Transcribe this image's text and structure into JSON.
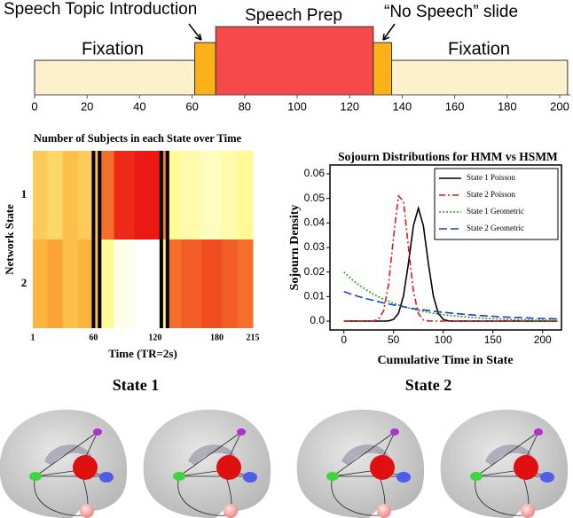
{
  "chart_data": [
    {
      "type": "timeline",
      "xlim": [
        0,
        204
      ],
      "xticks": [
        0,
        20,
        40,
        60,
        80,
        100,
        120,
        140,
        160,
        180,
        200
      ],
      "segments": [
        {
          "label": "Fixation",
          "start": 0,
          "end": 61,
          "color": "#fdf0cc"
        },
        {
          "label": "Speech Topic Introduction",
          "start": 61,
          "end": 69,
          "color": "#fbb117"
        },
        {
          "label": "Speech Prep",
          "start": 69,
          "end": 129,
          "color": "#f44a4a"
        },
        {
          "label": "“No Speech” slide",
          "start": 129,
          "end": 136,
          "color": "#fbb117"
        },
        {
          "label": "Fixation",
          "start": 136,
          "end": 203,
          "color": "#fdf0cc"
        }
      ]
    },
    {
      "type": "heatmap",
      "title": "Number of Subjects in each State over Time",
      "x_label": "Time (TR=2s)",
      "y_label": "Network State",
      "rows": [
        "1",
        "2"
      ],
      "xlim": [
        1,
        215
      ],
      "xticks": [
        1,
        60,
        120,
        180,
        215
      ],
      "bins": [
        1,
        15,
        30,
        45,
        60,
        66,
        80,
        100,
        115,
        126,
        132,
        145,
        165,
        185,
        200,
        215
      ],
      "values": [
        [
          9,
          8,
          10,
          9,
          10,
          15,
          19,
          20,
          20,
          14,
          5,
          4,
          3,
          4,
          5
        ],
        [
          11,
          12,
          10,
          11,
          10,
          5,
          1,
          0,
          0,
          6,
          15,
          16,
          17,
          16,
          15
        ]
      ],
      "vmax": 20,
      "markers": [
        60,
        66,
        126,
        132
      ]
    },
    {
      "type": "line",
      "title": "Sojourn Distributions for HMM vs HSMM",
      "x_label": "Cumulative Time in State",
      "y_label": "Sojourn Density",
      "xlim": [
        -14,
        219
      ],
      "xticks": [
        0,
        50,
        100,
        150,
        200
      ],
      "ylim": [
        -0.0036,
        0.0636
      ],
      "yticks": [
        {
          "value": 0,
          "label": "0.0"
        },
        0.01,
        0.02,
        0.03,
        0.04,
        0.05,
        0.06
      ],
      "legend": "top-right",
      "x": [
        0,
        5,
        10,
        15,
        20,
        25,
        30,
        35,
        40,
        45,
        50,
        55,
        60,
        65,
        70,
        75,
        80,
        85,
        90,
        95,
        100,
        105,
        110,
        115,
        120,
        125,
        130,
        135,
        140,
        145,
        150,
        155,
        160,
        165,
        170,
        175,
        180,
        185,
        190,
        195,
        200,
        205,
        210,
        215
      ],
      "series": [
        {
          "name": "State 1 Poisson",
          "color": "#000000",
          "dash": "solid",
          "values": [
            0,
            0,
            0,
            0,
            0,
            0,
            0,
            0,
            0,
            0.0001,
            0.0007,
            0.0032,
            0.0103,
            0.0236,
            0.0389,
            0.046,
            0.0389,
            0.0236,
            0.0103,
            0.0032,
            0.0007,
            0.0001,
            0,
            0,
            0,
            0,
            0,
            0,
            0,
            0,
            0,
            0,
            0,
            0,
            0,
            0,
            0,
            0,
            0,
            0,
            0,
            0,
            0,
            0
          ]
        },
        {
          "name": "State 2 Poisson",
          "color": "#e8141c",
          "dash": "dashdot",
          "values": [
            0,
            0,
            0,
            0,
            0,
            0,
            0.0001,
            0.0008,
            0.0042,
            0.0149,
            0.0344,
            0.051,
            0.0488,
            0.0301,
            0.012,
            0.0031,
            0.0005,
            0.0001,
            0,
            0,
            0,
            0,
            0,
            0,
            0,
            0,
            0,
            0,
            0,
            0,
            0,
            0,
            0,
            0,
            0,
            0,
            0,
            0,
            0,
            0,
            0,
            0,
            0,
            0
          ]
        },
        {
          "name": "State 1 Geometric",
          "color": "#2a9a2a",
          "dash": "dotted",
          "values": [
            0.02,
            0.0181,
            0.0163,
            0.0148,
            0.0134,
            0.0121,
            0.0109,
            0.0099,
            0.0089,
            0.0081,
            0.0073,
            0.0066,
            0.006,
            0.0054,
            0.0049,
            0.0044,
            0.004,
            0.0036,
            0.0032,
            0.0029,
            0.0027,
            0.0024,
            0.0022,
            0.002,
            0.0018,
            0.0016,
            0.0015,
            0.0013,
            0.0012,
            0.0011,
            0.001,
            0.0009,
            0.0008,
            0.0007,
            0.0006,
            0.0006,
            0.0005,
            0.0005,
            0.0004,
            0.0004,
            0.0004,
            0.0003,
            0.0003,
            0.0003
          ]
        },
        {
          "name": "State 2 Geometric",
          "color": "#1f3fc8",
          "dash": "dashed",
          "values": [
            0.012,
            0.0113,
            0.0106,
            0.01,
            0.0094,
            0.0089,
            0.0084,
            0.0079,
            0.0074,
            0.007,
            0.0066,
            0.0062,
            0.0058,
            0.0055,
            0.0051,
            0.0048,
            0.0046,
            0.0043,
            0.004,
            0.0038,
            0.0036,
            0.0034,
            0.0032,
            0.003,
            0.0028,
            0.0026,
            0.0025,
            0.0023,
            0.0022,
            0.0021,
            0.002,
            0.0018,
            0.0017,
            0.0016,
            0.0015,
            0.0015,
            0.0014,
            0.0013,
            0.0012,
            0.0011,
            0.0011,
            0.001,
            0.001,
            0.0009
          ]
        }
      ]
    }
  ],
  "brain_panels": {
    "labels": [
      "State 1",
      "State 2"
    ]
  }
}
